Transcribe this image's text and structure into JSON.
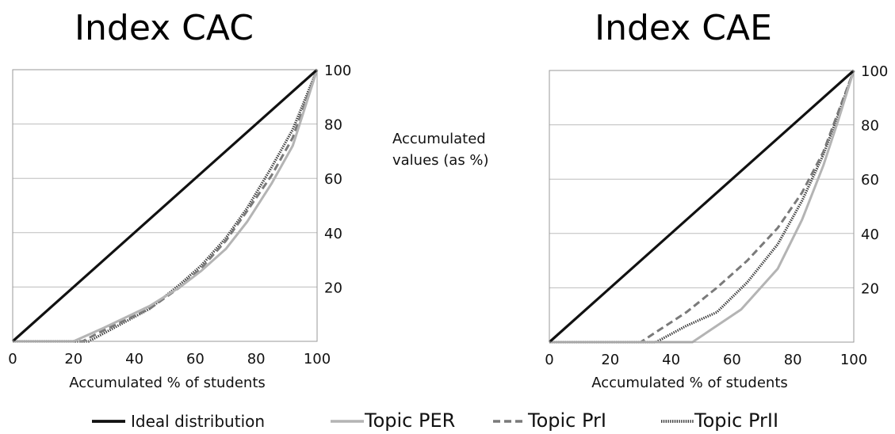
{
  "y_axis_shared_label": [
    "Accumulated",
    "values (as %)"
  ],
  "legend": [
    {
      "label": "Ideal distribution",
      "color": "#111111",
      "style": "solid"
    },
    {
      "label": "Topic PER",
      "color": "#b4b4b4",
      "style": "solid"
    },
    {
      "label": "Topic PrI",
      "color": "#7a7a7a",
      "style": "dashed"
    },
    {
      "label": "Topic PrII",
      "color": "#3c3c3c",
      "style": "dotted"
    }
  ],
  "chart_data": [
    {
      "type": "line",
      "title": "Index CAC",
      "xlabel": "Accumulated % of students",
      "ylabel": "",
      "xlim": [
        0,
        100
      ],
      "ylim": [
        0,
        100
      ],
      "xticks": [
        "0",
        "20",
        "40",
        "60",
        "80",
        "100"
      ],
      "yticks": [
        "20",
        "40",
        "60",
        "80",
        "100"
      ],
      "y_axis_side": "right",
      "grid": "horizontal",
      "series": [
        {
          "name": "Ideal distribution",
          "x": [
            0,
            100
          ],
          "y": [
            0,
            100
          ]
        },
        {
          "name": "Topic PER",
          "x": [
            0,
            20,
            30,
            45,
            55,
            62,
            70,
            77,
            85,
            92,
            100
          ],
          "y": [
            0,
            0,
            5,
            13,
            20,
            26,
            34,
            44,
            58,
            72,
            100
          ]
        },
        {
          "name": "Topic PrI",
          "x": [
            0,
            23,
            28,
            45,
            55,
            62,
            70,
            77,
            85,
            92,
            100
          ],
          "y": [
            0,
            0,
            3,
            12,
            20,
            27,
            37,
            48,
            61,
            75,
            100
          ]
        },
        {
          "name": "Topic PrII",
          "x": [
            0,
            25,
            30,
            45,
            55,
            62,
            70,
            77,
            85,
            92,
            100
          ],
          "y": [
            0,
            0,
            3,
            12,
            21,
            28,
            38,
            49,
            64,
            78,
            100
          ]
        }
      ]
    },
    {
      "type": "line",
      "title": "Index CAE",
      "xlabel": "Accumulated % of students",
      "ylabel": "",
      "xlim": [
        0,
        100
      ],
      "ylim": [
        0,
        100
      ],
      "xticks": [
        "0",
        "20",
        "40",
        "60",
        "80",
        "100"
      ],
      "yticks": [
        "20",
        "40",
        "60",
        "80",
        "100"
      ],
      "y_axis_side": "right",
      "grid": "horizontal",
      "series": [
        {
          "name": "Ideal distribution",
          "x": [
            0,
            100
          ],
          "y": [
            0,
            100
          ]
        },
        {
          "name": "Topic PER",
          "x": [
            0,
            47,
            63,
            75,
            83,
            90,
            95,
            100
          ],
          "y": [
            0,
            0,
            12,
            27,
            45,
            65,
            82,
            100
          ]
        },
        {
          "name": "Topic PrI",
          "x": [
            0,
            30,
            45,
            55,
            65,
            75,
            83,
            90,
            95,
            100
          ],
          "y": [
            0,
            0,
            11,
            20,
            30,
            42,
            55,
            70,
            85,
            100
          ]
        },
        {
          "name": "Topic PrII",
          "x": [
            0,
            35,
            45,
            55,
            65,
            75,
            83,
            90,
            95,
            100
          ],
          "y": [
            0,
            0,
            6,
            11,
            22,
            36,
            52,
            69,
            84,
            100
          ]
        }
      ]
    }
  ]
}
